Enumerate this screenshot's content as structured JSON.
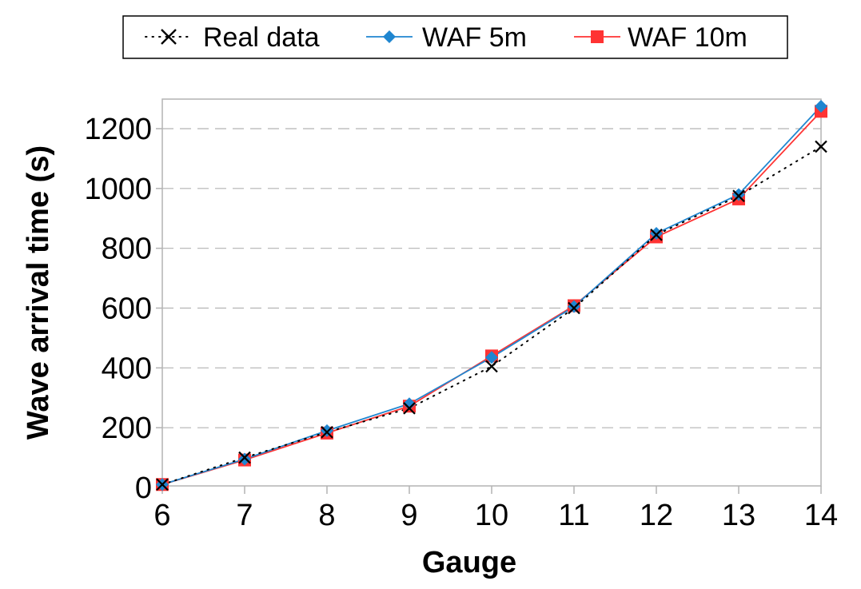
{
  "chart_data": {
    "type": "line",
    "xlabel": "Gauge",
    "ylabel": "Wave arrival time (s)",
    "x": [
      6,
      7,
      8,
      9,
      10,
      11,
      12,
      13,
      14
    ],
    "xlim": [
      6,
      14
    ],
    "ylim": [
      0,
      1300
    ],
    "yticks": [
      0,
      200,
      400,
      600,
      800,
      1000,
      1200
    ],
    "grid": "horizontal dashed",
    "legend_position": "top",
    "series": [
      {
        "name": "Real data",
        "color": "#000000",
        "marker": "x",
        "line": "dotted",
        "values": [
          10,
          100,
          185,
          265,
          405,
          600,
          845,
          975,
          1140
        ]
      },
      {
        "name": "WAF 5m",
        "color": "#1f86d0",
        "marker": "diamond",
        "line": "solid",
        "values": [
          10,
          95,
          190,
          280,
          435,
          605,
          850,
          980,
          1275
        ]
      },
      {
        "name": "WAF 10m",
        "color": "#ff3333",
        "marker": "square",
        "line": "solid",
        "values": [
          10,
          92,
          182,
          272,
          440,
          608,
          838,
          965,
          1258
        ]
      }
    ]
  }
}
